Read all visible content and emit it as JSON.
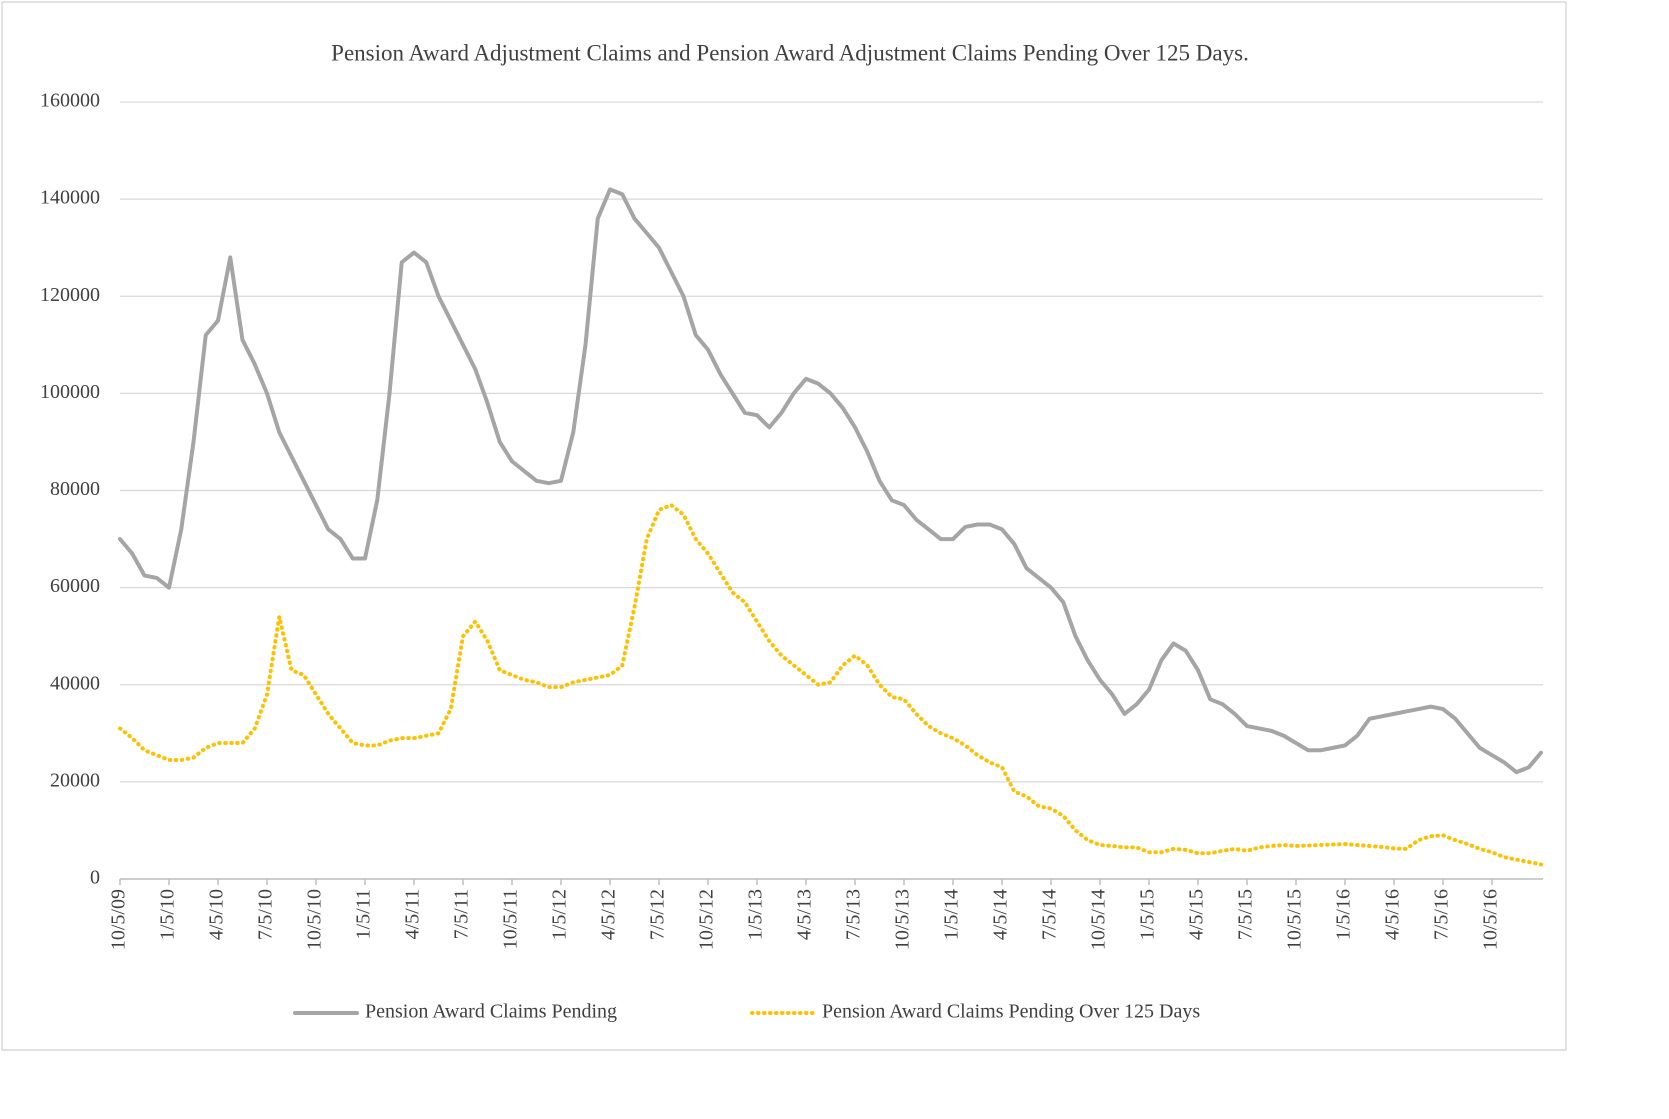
{
  "chart_data": {
    "type": "line",
    "title": "Pension Award Adjustment Claims and Pension Award Adjustment Claims Pending Over 125 Days.",
    "categories": [
      "10/5/09",
      null,
      null,
      null,
      "1/5/10",
      null,
      null,
      null,
      "4/5/10",
      null,
      null,
      null,
      "7/5/10",
      null,
      null,
      null,
      "10/5/10",
      null,
      null,
      null,
      "1/5/11",
      null,
      null,
      null,
      "4/5/11",
      null,
      null,
      null,
      "7/5/11",
      null,
      null,
      null,
      "10/5/11",
      null,
      null,
      null,
      "1/5/12",
      null,
      null,
      null,
      "4/5/12",
      null,
      null,
      null,
      "7/5/12",
      null,
      null,
      null,
      "10/5/12",
      null,
      null,
      null,
      "1/5/13",
      null,
      null,
      null,
      "4/5/13",
      null,
      null,
      null,
      "7/5/13",
      null,
      null,
      null,
      "10/5/13",
      null,
      null,
      null,
      "1/5/14",
      null,
      null,
      null,
      "4/5/14",
      null,
      null,
      null,
      "7/5/14",
      null,
      null,
      null,
      "10/5/14",
      null,
      null,
      null,
      "1/5/15",
      null,
      null,
      null,
      "4/5/15",
      null,
      null,
      null,
      "7/5/15",
      null,
      null,
      null,
      "10/5/15",
      null,
      null,
      null,
      "1/5/16",
      null,
      null,
      null,
      "4/5/16",
      null,
      null,
      null,
      "7/5/16",
      null,
      null,
      null,
      "10/5/16",
      null,
      null,
      null,
      null
    ],
    "series": [
      {
        "name": "Pension Award Claims Pending",
        "color": "#a5a5a5",
        "style": "solid",
        "values": [
          70000,
          67000,
          62500,
          62000,
          60000,
          72000,
          90000,
          112000,
          115000,
          128000,
          111000,
          106000,
          100000,
          92000,
          87000,
          82000,
          77000,
          72000,
          70000,
          66000,
          66000,
          78000,
          100000,
          127000,
          129000,
          127000,
          120000,
          115000,
          110000,
          105000,
          98000,
          90000,
          86000,
          84000,
          82000,
          81500,
          82000,
          92000,
          110000,
          136000,
          142000,
          141000,
          136000,
          133000,
          130000,
          125000,
          120000,
          112000,
          109000,
          104000,
          100000,
          96000,
          95500,
          93000,
          96000,
          100000,
          103000,
          102000,
          100000,
          97000,
          93000,
          88000,
          82000,
          78000,
          77000,
          74000,
          72000,
          70000,
          70000,
          72500,
          73000,
          73000,
          72000,
          69000,
          64000,
          62000,
          60000,
          57000,
          50000,
          45000,
          41000,
          38000,
          34000,
          36000,
          39000,
          45000,
          48500,
          47000,
          43000,
          37000,
          36000,
          34000,
          31500,
          31000,
          30500,
          29500,
          28000,
          26500,
          26500,
          27000,
          27500,
          29500,
          33000,
          33500,
          34000,
          34500,
          35000,
          35500,
          35000,
          33000,
          30000,
          27000,
          25500,
          24000,
          22000,
          23000,
          26000
        ]
      },
      {
        "name": "Pension Award Claims Pending Over 125 Days",
        "color": "#ffc000",
        "style": "dotted",
        "values": [
          31000,
          29000,
          26500,
          25500,
          24500,
          24500,
          25000,
          27000,
          28000,
          28000,
          28000,
          31000,
          38000,
          54000,
          43000,
          42000,
          38000,
          34000,
          31000,
          28000,
          27500,
          27500,
          28500,
          29000,
          29000,
          29500,
          30000,
          35000,
          50000,
          53000,
          49000,
          43000,
          42000,
          41000,
          40500,
          39500,
          39500,
          40500,
          41000,
          41500,
          42000,
          44000,
          56000,
          70000,
          76000,
          77000,
          75000,
          70000,
          67000,
          63000,
          59000,
          57000,
          53000,
          49000,
          46000,
          44000,
          42000,
          40000,
          40500,
          44000,
          46000,
          44000,
          40000,
          37500,
          37000,
          34000,
          31500,
          30000,
          29000,
          27500,
          25500,
          24000,
          23000,
          18000,
          17000,
          15000,
          14500,
          13000,
          10000,
          8000,
          7000,
          6800,
          6500,
          6500,
          5500,
          5500,
          6200,
          6000,
          5300,
          5300,
          5800,
          6200,
          5800,
          6500,
          6800,
          7000,
          6800,
          6900,
          7000,
          7100,
          7200,
          7000,
          6800,
          6600,
          6300,
          6200,
          8000,
          8800,
          9000,
          8000,
          7200,
          6200,
          5500,
          4500,
          4000,
          3500,
          3000
        ]
      }
    ],
    "ylim": [
      0,
      160000
    ],
    "yticks": [
      0,
      20000,
      40000,
      60000,
      80000,
      100000,
      120000,
      140000,
      160000
    ],
    "grid": true,
    "legend": "bottom"
  }
}
